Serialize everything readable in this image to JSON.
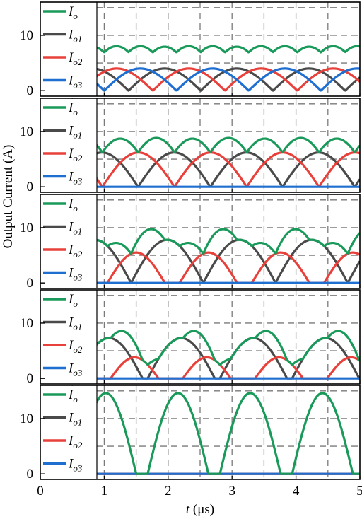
{
  "chart_data": {
    "type": "line",
    "shared_x": {
      "label_prefix": "t",
      "label_unit": "(μs)",
      "lim": [
        0,
        5
      ],
      "ticks": [
        "0",
        "1",
        "2",
        "3",
        "4",
        "5"
      ],
      "grid_every": 0.5
    },
    "ylabel": "Output Current (A)",
    "legend": [
      {
        "key": "Io",
        "base": "I",
        "sub": "o",
        "color": "#1a9a5a"
      },
      {
        "key": "Io1",
        "base": "I",
        "sub": "o1",
        "color": "#4a4a4a"
      },
      {
        "key": "Io2",
        "base": "I",
        "sub": "o2",
        "color": "#e8403a"
      },
      {
        "key": "Io3",
        "base": "I",
        "sub": "o3",
        "color": "#1f6fd1"
      }
    ],
    "legend_placement": "left",
    "grid": true,
    "panels": [
      {
        "ylim": [
          -1,
          16
        ],
        "yticks": [
          "0",
          "10"
        ],
        "yticks_at": [
          0,
          10
        ],
        "grid_y": [
          0,
          5,
          10,
          15
        ],
        "phase_period": 1.13,
        "series": [
          {
            "name": "Io1",
            "kind": "halfsine",
            "amp": 4.0,
            "start": 0.25,
            "period": 1.13
          },
          {
            "name": "Io2",
            "kind": "halfsine",
            "amp": 4.0,
            "start": 0.63,
            "period": 1.13
          },
          {
            "name": "Io3",
            "kind": "halfsine",
            "amp": 4.0,
            "start": 1.0,
            "period": 1.13
          },
          {
            "name": "Io",
            "kind": "sum",
            "of": [
              "Io1",
              "Io2",
              "Io3"
            ]
          }
        ]
      },
      {
        "ylim": [
          -1,
          16
        ],
        "yticks": [
          "0",
          "10"
        ],
        "yticks_at": [
          0,
          10
        ],
        "grid_y": [
          0,
          5,
          10,
          15
        ],
        "series": [
          {
            "name": "Io1",
            "kind": "halfsine",
            "amp": 6.2,
            "start": 0.4,
            "period": 1.13
          },
          {
            "name": "Io2",
            "kind": "halfsine",
            "amp": 6.2,
            "start": 0.97,
            "period": 1.13
          },
          {
            "name": "Io3",
            "kind": "zero"
          },
          {
            "name": "Io",
            "kind": "sum",
            "of": [
              "Io1",
              "Io2",
              "Io3"
            ]
          }
        ]
      },
      {
        "ylim": [
          -1,
          16
        ],
        "yticks": [
          "0",
          "10"
        ],
        "yticks_at": [
          0,
          10
        ],
        "grid_y": [
          0,
          5,
          10,
          15
        ],
        "series": [
          {
            "name": "Io1",
            "kind": "halfsine",
            "amp": 7.8,
            "start": 1.42,
            "period": 1.13,
            "width": 1.13
          },
          {
            "name": "Io2",
            "kind": "halfsine",
            "amp": 5.5,
            "start": 1.05,
            "period": 1.13,
            "width": 0.9
          },
          {
            "name": "Io3",
            "kind": "zero"
          },
          {
            "name": "Io",
            "kind": "sum",
            "of": [
              "Io1",
              "Io2",
              "Io3"
            ]
          }
        ]
      },
      {
        "ylim": [
          -1,
          16
        ],
        "yticks": [
          "0",
          "10"
        ],
        "yticks_at": [
          0,
          10
        ],
        "grid_y": [
          0,
          5,
          10,
          15
        ],
        "series": [
          {
            "name": "Io1",
            "kind": "halfsine",
            "amp": 7.3,
            "start": 0.55,
            "period": 1.13,
            "width": 1.05
          },
          {
            "name": "Io2",
            "kind": "halfsine",
            "amp": 3.8,
            "start": 1.1,
            "period": 1.13,
            "width": 0.75
          },
          {
            "name": "Io3",
            "kind": "zero"
          },
          {
            "name": "Io",
            "kind": "sum",
            "of": [
              "Io1",
              "Io2",
              "Io3"
            ]
          }
        ]
      },
      {
        "ylim": [
          -1,
          16
        ],
        "yticks": [
          "0",
          "10"
        ],
        "yticks_at": [
          0,
          10
        ],
        "grid_y": [
          0,
          5,
          10,
          15
        ],
        "series": [
          {
            "name": "Io1",
            "kind": "zero"
          },
          {
            "name": "Io2",
            "kind": "zero"
          },
          {
            "name": "Io3",
            "kind": "zero"
          },
          {
            "name": "Io",
            "kind": "halfsine",
            "amp": 14.6,
            "start": 0.55,
            "period": 1.13,
            "width": 0.95
          }
        ]
      }
    ]
  }
}
